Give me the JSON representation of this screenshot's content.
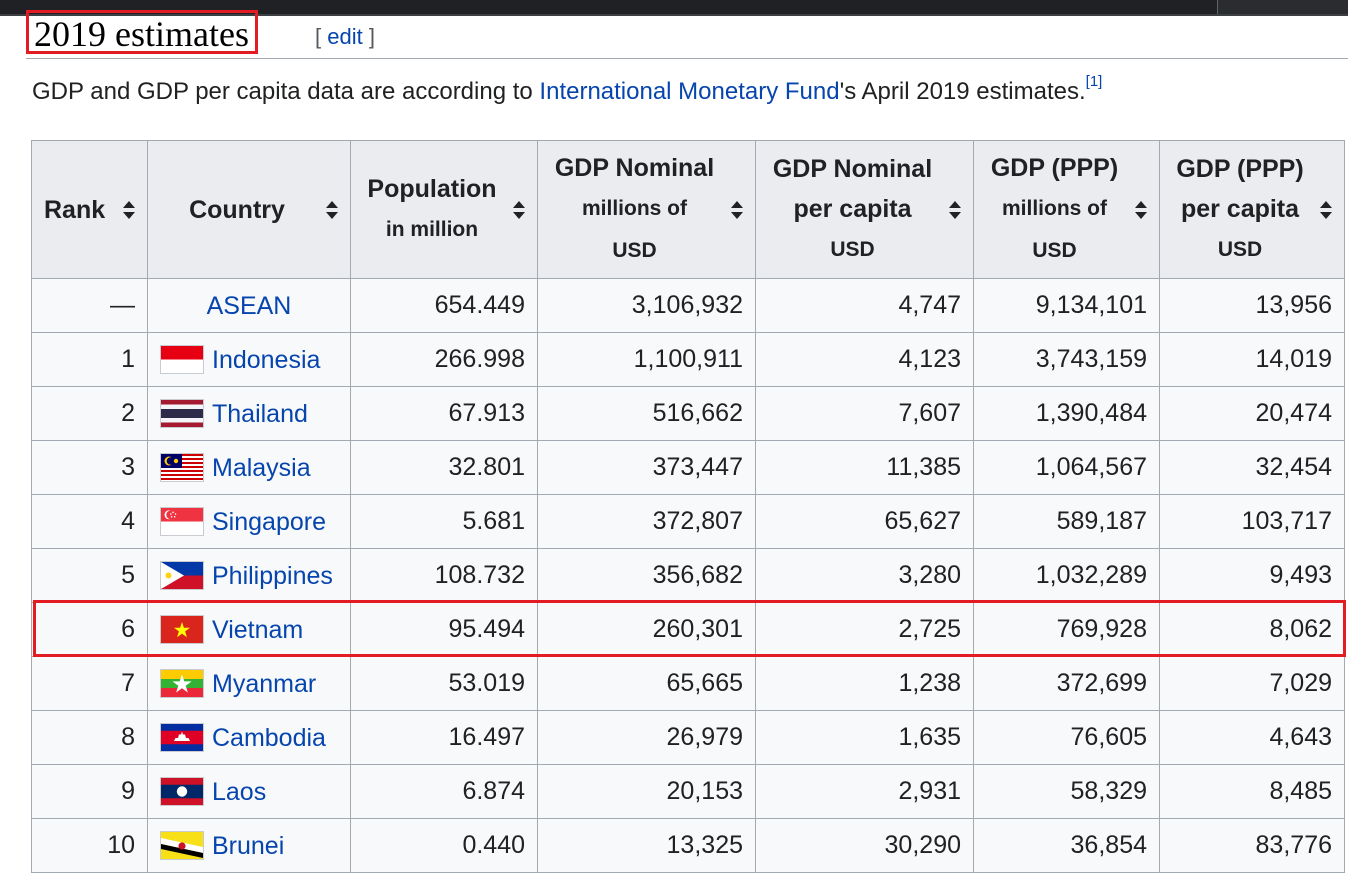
{
  "section": {
    "title": "2019 estimates",
    "edit_open": "[ ",
    "edit_label": "edit",
    "edit_close": " ]"
  },
  "intro": {
    "before_link": "GDP and GDP per capita data are according to ",
    "link_text": "International Monetary Fund",
    "after_link": "'s April 2019 estimates.",
    "citation": "[1]"
  },
  "table": {
    "headers": [
      {
        "main": "Rank",
        "sub": ""
      },
      {
        "main": "Country",
        "sub": ""
      },
      {
        "main": "Population",
        "sub": "in million"
      },
      {
        "main": "GDP Nominal",
        "sub": "millions of",
        "sub2": "USD"
      },
      {
        "main": "GDP Nominal",
        "sub": "per capita",
        "sub2": "USD"
      },
      {
        "main": "GDP (PPP)",
        "sub": "millions of",
        "sub2": "USD"
      },
      {
        "main": "GDP (PPP)",
        "sub": "per capita",
        "sub2": "USD"
      }
    ],
    "rows": [
      {
        "rank": "—",
        "country": "ASEAN",
        "flag": "none",
        "population": "654.449",
        "gdp_nominal": "3,106,932",
        "gdp_nominal_pc": "4,747",
        "gdp_ppp": "9,134,101",
        "gdp_ppp_pc": "13,956"
      },
      {
        "rank": "1",
        "country": "Indonesia",
        "flag": "indonesia-flag-icon",
        "population": "266.998",
        "gdp_nominal": "1,100,911",
        "gdp_nominal_pc": "4,123",
        "gdp_ppp": "3,743,159",
        "gdp_ppp_pc": "14,019"
      },
      {
        "rank": "2",
        "country": "Thailand",
        "flag": "thailand-flag-icon",
        "population": "67.913",
        "gdp_nominal": "516,662",
        "gdp_nominal_pc": "7,607",
        "gdp_ppp": "1,390,484",
        "gdp_ppp_pc": "20,474"
      },
      {
        "rank": "3",
        "country": "Malaysia",
        "flag": "malaysia-flag-icon",
        "population": "32.801",
        "gdp_nominal": "373,447",
        "gdp_nominal_pc": "11,385",
        "gdp_ppp": "1,064,567",
        "gdp_ppp_pc": "32,454"
      },
      {
        "rank": "4",
        "country": "Singapore",
        "flag": "singapore-flag-icon",
        "population": "5.681",
        "gdp_nominal": "372,807",
        "gdp_nominal_pc": "65,627",
        "gdp_ppp": "589,187",
        "gdp_ppp_pc": "103,717"
      },
      {
        "rank": "5",
        "country": "Philippines",
        "flag": "philippines-flag-icon",
        "population": "108.732",
        "gdp_nominal": "356,682",
        "gdp_nominal_pc": "3,280",
        "gdp_ppp": "1,032,289",
        "gdp_ppp_pc": "9,493"
      },
      {
        "rank": "6",
        "country": "Vietnam",
        "flag": "vietnam-flag-icon",
        "population": "95.494",
        "gdp_nominal": "260,301",
        "gdp_nominal_pc": "2,725",
        "gdp_ppp": "769,928",
        "gdp_ppp_pc": "8,062"
      },
      {
        "rank": "7",
        "country": "Myanmar",
        "flag": "myanmar-flag-icon",
        "population": "53.019",
        "gdp_nominal": "65,665",
        "gdp_nominal_pc": "1,238",
        "gdp_ppp": "372,699",
        "gdp_ppp_pc": "7,029"
      },
      {
        "rank": "8",
        "country": "Cambodia",
        "flag": "cambodia-flag-icon",
        "population": "16.497",
        "gdp_nominal": "26,979",
        "gdp_nominal_pc": "1,635",
        "gdp_ppp": "76,605",
        "gdp_ppp_pc": "4,643"
      },
      {
        "rank": "9",
        "country": "Laos",
        "flag": "laos-flag-icon",
        "population": "6.874",
        "gdp_nominal": "20,153",
        "gdp_nominal_pc": "2,931",
        "gdp_ppp": "58,329",
        "gdp_ppp_pc": "8,485"
      },
      {
        "rank": "10",
        "country": "Brunei",
        "flag": "brunei-flag-icon",
        "population": "0.440",
        "gdp_nominal": "13,325",
        "gdp_nominal_pc": "30,290",
        "gdp_ppp": "36,854",
        "gdp_ppp_pc": "83,776"
      }
    ]
  },
  "colors": {
    "link": "#0645ad",
    "header_bg": "#eaecf0",
    "cell_bg": "#f8f9fa",
    "border": "#a2a9b1",
    "highlight": "#e31b23"
  }
}
